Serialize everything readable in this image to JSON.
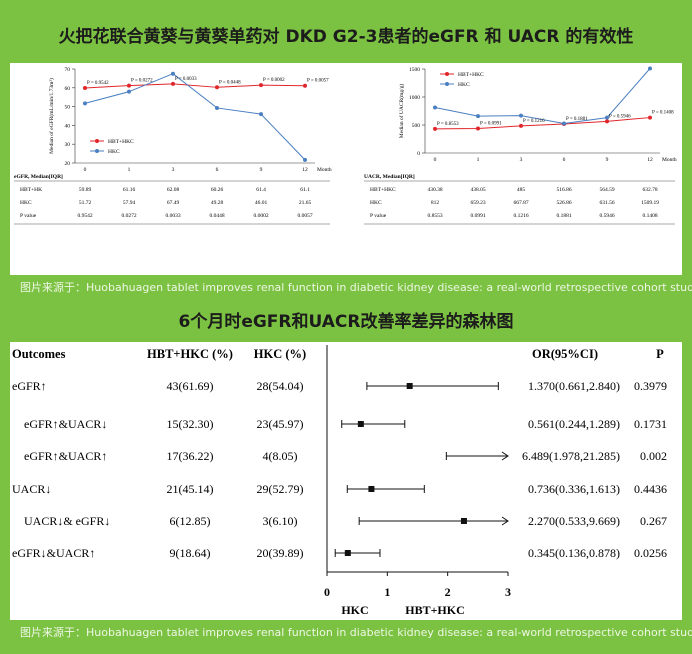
{
  "header": {
    "title": "火把花联合黄葵与黄葵单药对 DKD G2-3患者的eGFR 和 UACR 的有效性",
    "caption_1": "图片来源于：Huobahuagen tablet improves renal function in diabetic kidney disease: a real-world retrospective cohort study",
    "title_2": "6个月时eGFR和UACR改善率差异的森林图",
    "caption_2": "图片来源于：Huobahuagen tablet improves renal function in diabetic kidney disease: a real-world retrospective cohort study"
  },
  "chart_data": [
    {
      "type": "line",
      "y_label": "Median of eGFR(mL/min/1.73m²)",
      "x_label": "Month",
      "categories": [
        "0",
        "1",
        "3",
        "6",
        "9",
        "12"
      ],
      "ylim": [
        20,
        70
      ],
      "yticks": [
        20,
        30,
        40,
        50,
        60,
        70
      ],
      "legend": "lower left",
      "series": [
        {
          "name": "HBT+HKC",
          "color": "#e0262b",
          "values": [
            59.89,
            61.16,
            62.08,
            60.26,
            61.4,
            61.1
          ]
        },
        {
          "name": "HKC",
          "color": "#4a7fc1",
          "values": [
            51.72,
            57.94,
            67.49,
            49.28,
            46.01,
            21.65
          ]
        }
      ],
      "annotations": [
        "P = 0.9542",
        "P = 0.0272",
        "P = 0.0033",
        "P = 0.0448",
        "P = 0.0002",
        "P = 0.0057"
      ],
      "table": {
        "title": "eGFR, Median[IQR]",
        "row_labels": [
          "HBT+HK",
          "HKC",
          "P value"
        ],
        "p_values": [
          0.9542,
          0.0272,
          0.0033,
          0.0448,
          0.0002,
          0.0057
        ]
      }
    },
    {
      "type": "line",
      "y_label": "Median of UACR(mg/g)",
      "x_label": "Month",
      "categories": [
        "0",
        "1",
        "3",
        "6",
        "9",
        "12"
      ],
      "ylim": [
        0,
        1500
      ],
      "yticks": [
        0,
        500,
        1000,
        1500
      ],
      "legend": "upper left",
      "series": [
        {
          "name": "HBT+HKC",
          "color": "#e0262b",
          "values": [
            430.38,
            438.05,
            485.0,
            516.86,
            564.59,
            632.78
          ]
        },
        {
          "name": "HKC",
          "color": "#4a7fc1",
          "values": [
            812.0,
            659.23,
            667.87,
            526.86,
            631.56,
            1509.19
          ]
        }
      ],
      "annotations": [
        "P = 0.8553",
        "P = 0.0991",
        "P = 0.1216",
        "P = 0.1881",
        "P = 0.5946",
        "P = 0.1408"
      ],
      "table": {
        "title": "UACR, Median[IQR]",
        "row_labels": [
          "HBT+HKC",
          "HKC",
          "P value"
        ],
        "p_values": [
          0.8553,
          0.0991,
          0.1216,
          0.1881,
          0.5946,
          0.1408
        ]
      }
    },
    {
      "type": "forest",
      "columns": [
        "Outcomes",
        "HBT+HKC (%)",
        "HKC (%)",
        "OR(95%CI)",
        "P"
      ],
      "xlim": [
        0,
        3
      ],
      "xticks": [
        0,
        1,
        2,
        3
      ],
      "x_labels": [
        "HKC",
        "HBT+HKC"
      ],
      "rows": [
        {
          "label": "eGFR↑",
          "indent": false,
          "group_1": "43(61.69)",
          "group_2": "28(54.04)",
          "or": 1.37,
          "lo": 0.661,
          "hi": 2.84,
          "or_label": "1.370(0.661,2.840)",
          "p": 0.3979
        },
        {
          "label": "eGFR↑&UACR↓",
          "indent": true,
          "group_1": "15(32.30)",
          "group_2": "23(45.97)",
          "or": 0.561,
          "lo": 0.244,
          "hi": 1.289,
          "or_label": "0.561(0.244,1.289)",
          "p": 0.1731
        },
        {
          "label": "eGFR↑&UACR↑",
          "indent": true,
          "group_1": "17(36.22)",
          "group_2": "4(8.05)",
          "or": 6.489,
          "lo": 1.978,
          "hi": 21.285,
          "or_label": "6.489(1.978,21.285)",
          "p": 0.002
        },
        {
          "label": "UACR↓",
          "indent": false,
          "group_1": "21(45.14)",
          "group_2": "29(52.79)",
          "or": 0.736,
          "lo": 0.336,
          "hi": 1.613,
          "or_label": "0.736(0.336,1.613)",
          "p": 0.4436
        },
        {
          "label": "UACR↓& eGFR↓",
          "indent": true,
          "group_1": "6(12.85)",
          "group_2": "3(6.10)",
          "or": 2.27,
          "lo": 0.533,
          "hi": 9.669,
          "or_label": "2.270(0.533,9.669)",
          "p": 0.267
        },
        {
          "label": "eGFR↓&UACR↑",
          "indent": false,
          "group_1": "9(18.64)",
          "group_2": "20(39.89)",
          "or": 0.345,
          "lo": 0.136,
          "hi": 0.878,
          "or_label": "0.345(0.136,0.878)",
          "p": 0.0256
        }
      ]
    }
  ]
}
